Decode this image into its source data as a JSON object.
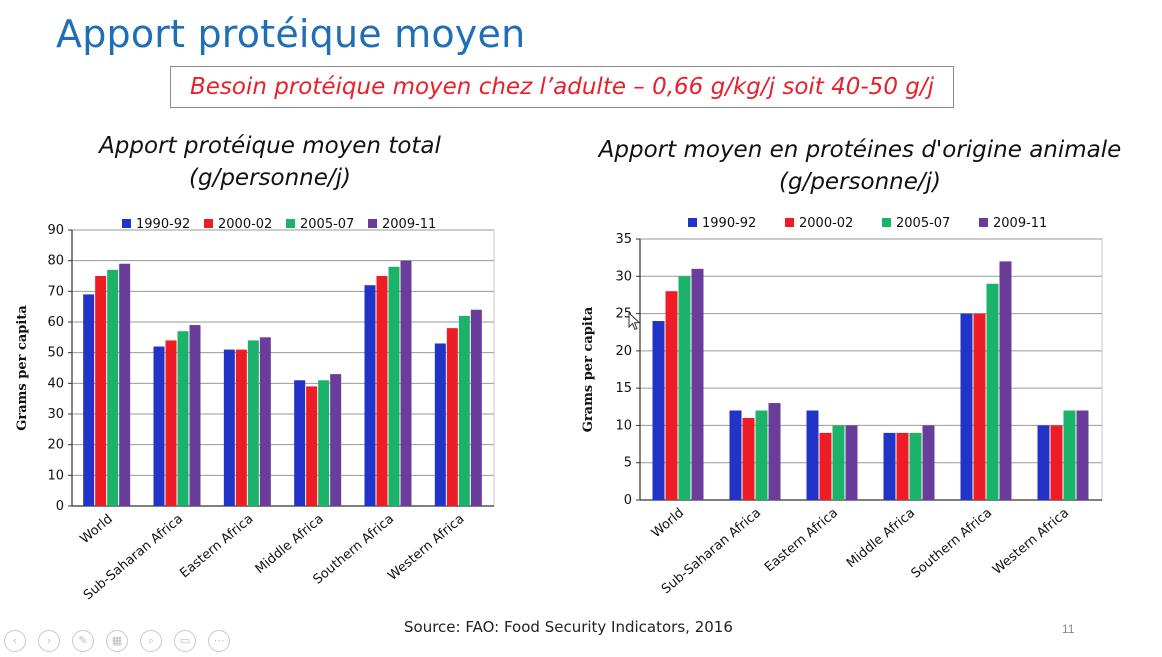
{
  "slide": {
    "title": "Apport protéique moyen",
    "note": "Besoin protéique moyen chez l’adulte – 0,66 g/kg/j soit 40-50 g/j",
    "left_heading_line1": "Apport protéique moyen total",
    "left_heading_line2": "(g/personne/j)",
    "right_heading_line1": "Apport moyen en protéines d'origine animale",
    "right_heading_line2": "(g/personne/j)",
    "source": "Source: FAO: Food Security Indicators, 2016",
    "slide_number": "11",
    "title_color": "#1f6fb8",
    "note_color": "#e8202a"
  },
  "toolbar": {
    "icons": [
      "previous-icon",
      "next-icon",
      "pen-icon",
      "slides-icon",
      "zoom-icon",
      "subtitles-icon",
      "more-icon"
    ],
    "glyphs": [
      "‹",
      "›",
      "✎",
      "▦",
      "⌕",
      "▭",
      "⋯"
    ]
  },
  "chart_data": [
    {
      "type": "bar",
      "title": "Apport protéique moyen total (g/personne/j)",
      "xlabel": "",
      "ylabel": "Grams per capita",
      "ylim": [
        0,
        90
      ],
      "yticks": [
        0,
        10,
        20,
        30,
        40,
        50,
        60,
        70,
        80,
        90
      ],
      "grid": true,
      "legend_position": "top",
      "categories": [
        "World",
        "Sub-Saharan Africa",
        "Eastern Africa",
        "Middle Africa",
        "Southern Africa",
        "Western Africa"
      ],
      "series": [
        {
          "name": "1990-92",
          "color": "#2233c8",
          "values": [
            69,
            52,
            51,
            41,
            72,
            53
          ]
        },
        {
          "name": "2000-02",
          "color": "#ee1c25",
          "values": [
            75,
            54,
            51,
            39,
            75,
            58
          ]
        },
        {
          "name": "2005-07",
          "color": "#1bb36a",
          "values": [
            77,
            57,
            54,
            41,
            78,
            62
          ]
        },
        {
          "name": "2009-11",
          "color": "#6a3d9a",
          "values": [
            79,
            59,
            55,
            43,
            80,
            64
          ]
        }
      ]
    },
    {
      "type": "bar",
      "title": "Apport moyen en protéines d'origine animale (g/personne/j)",
      "xlabel": "",
      "ylabel": "Grams per capita",
      "ylim": [
        0,
        35
      ],
      "yticks": [
        0,
        5,
        10,
        15,
        20,
        25,
        30,
        35
      ],
      "grid": true,
      "legend_position": "top",
      "categories": [
        "World",
        "Sub-Saharan Africa",
        "Eastern Africa",
        "Middle Africa",
        "Southern Africa",
        "Western Africa"
      ],
      "series": [
        {
          "name": "1990-92",
          "color": "#2233c8",
          "values": [
            24,
            12,
            12,
            9,
            25,
            10
          ]
        },
        {
          "name": "2000-02",
          "color": "#ee1c25",
          "values": [
            28,
            11,
            9,
            9,
            25,
            10
          ]
        },
        {
          "name": "2005-07",
          "color": "#1bb36a",
          "values": [
            30,
            12,
            10,
            9,
            29,
            12
          ]
        },
        {
          "name": "2009-11",
          "color": "#6a3d9a",
          "values": [
            31,
            13,
            10,
            10,
            32,
            12
          ]
        }
      ]
    }
  ]
}
